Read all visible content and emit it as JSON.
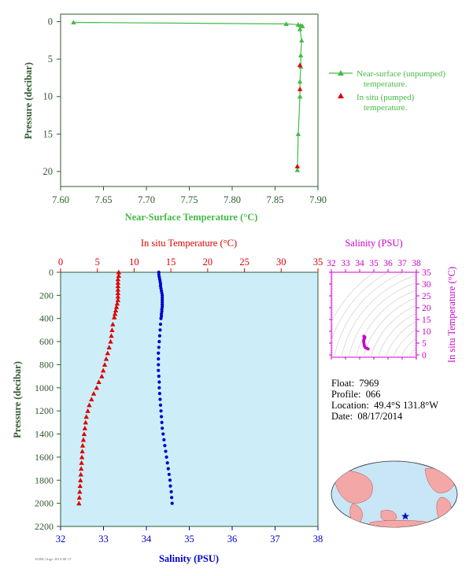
{
  "info": {
    "float_label": "Float:",
    "float_value": "7969",
    "profile_label": "Profile:",
    "profile_value": "066",
    "location_label": "Location:",
    "location_value": "49.4°S  131.8°W",
    "date_label": "Date:",
    "date_value": "08/17/2014",
    "credit": "AOML/Argo 2014-08-17"
  },
  "colors": {
    "green": "#44bb44",
    "axis_green": "#2f5a2f",
    "red": "#dd0000",
    "blue": "#0000cc",
    "magenta": "#cc00cc",
    "panel_bg": "#cdeef8",
    "land": "#f4a7a7",
    "ocean": "#c8e6f5"
  },
  "chart_data": [
    {
      "type": "line",
      "title": "",
      "xlabel": "Near-Surface Temperature (°C)",
      "ylabel": "Pressure (decibar)",
      "xlim": [
        7.6,
        7.9
      ],
      "ylim": [
        22,
        -1
      ],
      "xticks": [
        "7.60",
        "7.65",
        "7.70",
        "7.75",
        "7.80",
        "7.85",
        "7.90"
      ],
      "yticks": [
        "0",
        "5",
        "10",
        "15",
        "20"
      ],
      "grid": false,
      "legend_position": "right",
      "series": [
        {
          "name": "Near-surface (unpumped) temperature.",
          "marker": "triangle",
          "line": true,
          "color": "green",
          "points": [
            [
              7.615,
              0.1
            ],
            [
              7.863,
              0.3
            ],
            [
              7.877,
              0.4
            ],
            [
              7.88,
              0.5
            ],
            [
              7.882,
              0.6
            ],
            [
              7.879,
              1.0
            ],
            [
              7.881,
              2.5
            ],
            [
              7.88,
              4.5
            ],
            [
              7.88,
              6.0
            ],
            [
              7.879,
              8.0
            ],
            [
              7.879,
              10.0
            ],
            [
              7.877,
              15.0
            ],
            [
              7.876,
              19.8
            ]
          ]
        },
        {
          "name": "In situ (pumped) temperature.",
          "marker": "triangle",
          "line": false,
          "color": "red",
          "points": [
            [
              7.879,
              5.8
            ],
            [
              7.879,
              9.0
            ],
            [
              7.876,
              19.3
            ]
          ]
        }
      ]
    },
    {
      "type": "scatter",
      "title": "",
      "ylabel": "Pressure (decibar)",
      "ylim": [
        2200,
        0
      ],
      "yticks": [
        "0",
        "200",
        "400",
        "600",
        "800",
        "1000",
        "1200",
        "1400",
        "1600",
        "1800",
        "2000",
        "2200"
      ],
      "top_axis": {
        "label": "In situ Temperature (°C)",
        "lim": [
          0,
          35
        ],
        "ticks": [
          "0",
          "5",
          "10",
          "15",
          "20",
          "25",
          "30",
          "35"
        ]
      },
      "bottom_axis": {
        "label": "Salinity (PSU)",
        "lim": [
          32,
          38
        ],
        "ticks": [
          "32",
          "33",
          "34",
          "35",
          "36",
          "37",
          "38"
        ]
      },
      "grid": false,
      "series": [
        {
          "name": "In situ Temperature (°C)",
          "axis": "top",
          "marker": "triangle",
          "color": "red",
          "points": [
            [
              7.9,
              0
            ],
            [
              7.9,
              30
            ],
            [
              7.8,
              60
            ],
            [
              7.8,
              90
            ],
            [
              7.8,
              120
            ],
            [
              7.8,
              150
            ],
            [
              7.8,
              180
            ],
            [
              7.8,
              210
            ],
            [
              7.8,
              240
            ],
            [
              7.7,
              270
            ],
            [
              7.6,
              300
            ],
            [
              7.5,
              330
            ],
            [
              7.4,
              360
            ],
            [
              7.3,
              390
            ],
            [
              7.1,
              450
            ],
            [
              7.0,
              500
            ],
            [
              6.9,
              550
            ],
            [
              6.8,
              600
            ],
            [
              6.6,
              650
            ],
            [
              6.4,
              700
            ],
            [
              6.2,
              750
            ],
            [
              6.0,
              800
            ],
            [
              5.8,
              850
            ],
            [
              5.6,
              900
            ],
            [
              5.2,
              950
            ],
            [
              4.9,
              1000
            ],
            [
              4.5,
              1050
            ],
            [
              4.2,
              1100
            ],
            [
              3.9,
              1150
            ],
            [
              3.7,
              1200
            ],
            [
              3.5,
              1250
            ],
            [
              3.4,
              1300
            ],
            [
              3.3,
              1350
            ],
            [
              3.2,
              1400
            ],
            [
              3.1,
              1450
            ],
            [
              3.0,
              1500
            ],
            [
              2.95,
              1550
            ],
            [
              2.9,
              1600
            ],
            [
              2.85,
              1650
            ],
            [
              2.8,
              1700
            ],
            [
              2.75,
              1750
            ],
            [
              2.7,
              1800
            ],
            [
              2.65,
              1850
            ],
            [
              2.6,
              1900
            ],
            [
              2.55,
              1950
            ],
            [
              2.5,
              2000
            ]
          ]
        },
        {
          "name": "Salinity (PSU)",
          "axis": "bottom",
          "marker": "dot",
          "color": "blue",
          "points": [
            [
              34.29,
              0
            ],
            [
              34.29,
              20
            ],
            [
              34.3,
              40
            ],
            [
              34.31,
              60
            ],
            [
              34.32,
              80
            ],
            [
              34.33,
              100
            ],
            [
              34.33,
              120
            ],
            [
              34.34,
              140
            ],
            [
              34.35,
              160
            ],
            [
              34.36,
              180
            ],
            [
              34.37,
              200
            ],
            [
              34.37,
              220
            ],
            [
              34.37,
              240
            ],
            [
              34.37,
              260
            ],
            [
              34.37,
              280
            ],
            [
              34.37,
              300
            ],
            [
              34.36,
              320
            ],
            [
              34.36,
              340
            ],
            [
              34.35,
              360
            ],
            [
              34.35,
              380
            ],
            [
              34.34,
              400
            ],
            [
              34.33,
              450
            ],
            [
              34.32,
              500
            ],
            [
              34.31,
              550
            ],
            [
              34.3,
              600
            ],
            [
              34.29,
              650
            ],
            [
              34.28,
              700
            ],
            [
              34.28,
              750
            ],
            [
              34.28,
              800
            ],
            [
              34.28,
              850
            ],
            [
              34.29,
              900
            ],
            [
              34.3,
              950
            ],
            [
              34.3,
              1000
            ],
            [
              34.31,
              1050
            ],
            [
              34.32,
              1100
            ],
            [
              34.33,
              1150
            ],
            [
              34.34,
              1200
            ],
            [
              34.35,
              1250
            ],
            [
              34.36,
              1300
            ],
            [
              34.37,
              1350
            ],
            [
              34.39,
              1400
            ],
            [
              34.41,
              1450
            ],
            [
              34.43,
              1500
            ],
            [
              34.45,
              1550
            ],
            [
              34.47,
              1600
            ],
            [
              34.49,
              1650
            ],
            [
              34.51,
              1700
            ],
            [
              34.53,
              1750
            ],
            [
              34.55,
              1800
            ],
            [
              34.56,
              1850
            ],
            [
              34.58,
              1900
            ],
            [
              34.59,
              1950
            ],
            [
              34.6,
              2000
            ]
          ]
        }
      ]
    },
    {
      "type": "scatter",
      "title": "Salinity (PSU)",
      "xlabel": "Salinity (PSU)",
      "ylabel": "In situ Temperature (°C)",
      "xlim": [
        32,
        38
      ],
      "ylim": [
        -1,
        35
      ],
      "xticks": [
        "32",
        "33",
        "34",
        "35",
        "36",
        "37",
        "38"
      ],
      "yticks": [
        "0",
        "5",
        "10",
        "15",
        "20",
        "25",
        "30",
        "35"
      ],
      "grid": false,
      "density_contours": true,
      "series": [
        {
          "name": "T-S profile",
          "color": "magenta",
          "points": [
            [
              34.29,
              7.9
            ],
            [
              34.33,
              7.8
            ],
            [
              34.37,
              7.5
            ],
            [
              34.35,
              7.0
            ],
            [
              34.32,
              6.8
            ],
            [
              34.3,
              6.4
            ],
            [
              34.28,
              6.0
            ],
            [
              34.28,
              5.6
            ],
            [
              34.3,
              4.9
            ],
            [
              34.32,
              4.2
            ],
            [
              34.34,
              3.7
            ],
            [
              34.37,
              3.3
            ],
            [
              34.41,
              3.1
            ],
            [
              34.45,
              2.95
            ],
            [
              34.49,
              2.85
            ],
            [
              34.53,
              2.75
            ],
            [
              34.56,
              2.65
            ],
            [
              34.59,
              2.55
            ],
            [
              34.6,
              2.5
            ]
          ]
        }
      ]
    }
  ]
}
